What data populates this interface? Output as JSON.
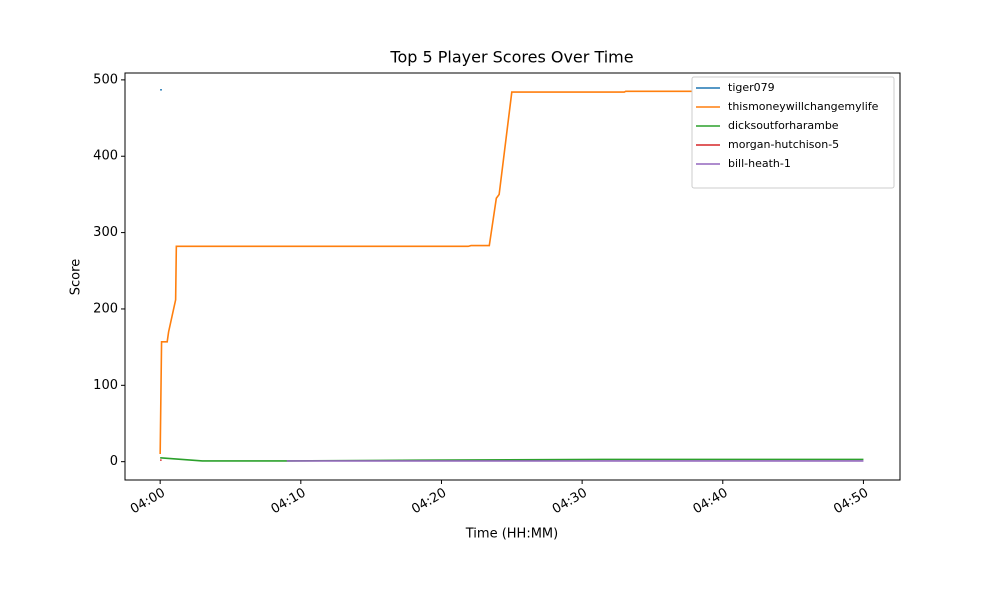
{
  "chart_data": {
    "type": "line",
    "title": "Top 5 Player Scores Over Time",
    "x_label": "Time (HH:MM)",
    "y_label": "Score",
    "xlim": [
      -2.5,
      52.6
    ],
    "ylim": [
      -24,
      509
    ],
    "xticks": [
      {
        "value": 0,
        "label": "04:00"
      },
      {
        "value": 10,
        "label": "04:10"
      },
      {
        "value": 20,
        "label": "04:20"
      },
      {
        "value": 30,
        "label": "04:30"
      },
      {
        "value": 40,
        "label": "04:40"
      },
      {
        "value": 50,
        "label": "04:50"
      }
    ],
    "yticks": [
      0,
      100,
      200,
      300,
      400,
      500
    ],
    "grid": false,
    "legend": "upper right",
    "series": [
      {
        "name": "tiger079",
        "color": "#1f77b4",
        "x": [
          0,
          0.12
        ],
        "values": [
          487,
          487
        ]
      },
      {
        "name": "thismoneywillchangemylife",
        "color": "#ff7f0e",
        "x": [
          0,
          0.1,
          0.5,
          0.6,
          1.1,
          1.15,
          21.9,
          22.1,
          23.4,
          23.9,
          24.1,
          25.0,
          33.0,
          33.1,
          50
        ],
        "values": [
          10,
          157,
          157,
          170,
          212,
          282,
          282,
          283,
          283,
          345,
          350,
          484,
          484,
          485,
          485
        ]
      },
      {
        "name": "dicksoutforharambe",
        "color": "#2ca02c",
        "x": [
          0,
          3,
          9,
          18.5,
          31.5,
          50
        ],
        "values": [
          5,
          1,
          1,
          2,
          3,
          3
        ]
      },
      {
        "name": "morgan-hutchison-5",
        "color": "#d62728",
        "x": [
          0,
          0.1
        ],
        "values": [
          2,
          2
        ]
      },
      {
        "name": "bill-heath-1",
        "color": "#9467bd",
        "x": [
          9,
          50
        ],
        "values": [
          1,
          1
        ]
      }
    ]
  }
}
